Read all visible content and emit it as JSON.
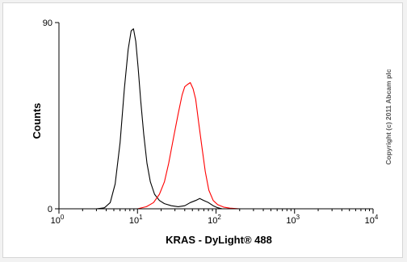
{
  "chart_data": {
    "type": "line",
    "xlabel": "KRAS - DyLight® 488",
    "ylabel": "Counts",
    "x_scale": "log",
    "xlim": [
      1,
      10000
    ],
    "ylim": [
      0,
      90
    ],
    "x_ticks": [
      {
        "value": 1,
        "base": "10",
        "exp": "0"
      },
      {
        "value": 10,
        "base": "10",
        "exp": "1"
      },
      {
        "value": 100,
        "base": "10",
        "exp": "2"
      },
      {
        "value": 1000,
        "base": "10",
        "exp": "3"
      },
      {
        "value": 10000,
        "base": "10",
        "exp": "4"
      }
    ],
    "y_ticks": [
      {
        "value": 0,
        "label": "0"
      },
      {
        "value": 90,
        "label": "90"
      }
    ],
    "grid": false,
    "legend": "none",
    "series": [
      {
        "color": "#000000",
        "points": [
          [
            3.0,
            0
          ],
          [
            3.8,
            0.5
          ],
          [
            4.5,
            3
          ],
          [
            5.2,
            12
          ],
          [
            6.0,
            32
          ],
          [
            6.8,
            58
          ],
          [
            7.6,
            77
          ],
          [
            8.3,
            86
          ],
          [
            8.9,
            87
          ],
          [
            9.5,
            81
          ],
          [
            10.2,
            68
          ],
          [
            11.0,
            52
          ],
          [
            12.0,
            36
          ],
          [
            13.2,
            22
          ],
          [
            14.6,
            13
          ],
          [
            16.5,
            7
          ],
          [
            19.0,
            4
          ],
          [
            22.0,
            2.5
          ],
          [
            27.0,
            1.5
          ],
          [
            33.0,
            1
          ],
          [
            40.0,
            1.5
          ],
          [
            47.0,
            3
          ],
          [
            55.0,
            4
          ],
          [
            62.0,
            5
          ],
          [
            70.0,
            4
          ],
          [
            80.0,
            3
          ],
          [
            92.0,
            1.5
          ],
          [
            105.0,
            0.5
          ],
          [
            120.0,
            0
          ]
        ]
      },
      {
        "color": "#ff0000",
        "points": [
          [
            10.0,
            0
          ],
          [
            13.0,
            1
          ],
          [
            16.0,
            3
          ],
          [
            19.0,
            7
          ],
          [
            22.0,
            13
          ],
          [
            25.0,
            22
          ],
          [
            29.0,
            35
          ],
          [
            33.0,
            46
          ],
          [
            37.0,
            55
          ],
          [
            40.0,
            59
          ],
          [
            43.0,
            60
          ],
          [
            47.0,
            61
          ],
          [
            51.0,
            58
          ],
          [
            55.0,
            53
          ],
          [
            60.0,
            42
          ],
          [
            66.0,
            30
          ],
          [
            73.0,
            18
          ],
          [
            81.0,
            9
          ],
          [
            92.0,
            4
          ],
          [
            105.0,
            2
          ],
          [
            125.0,
            0.8
          ],
          [
            150.0,
            0.3
          ],
          [
            200.0,
            0
          ]
        ]
      }
    ]
  },
  "copyright": "Copyright (c) 2011 Abcam plc"
}
